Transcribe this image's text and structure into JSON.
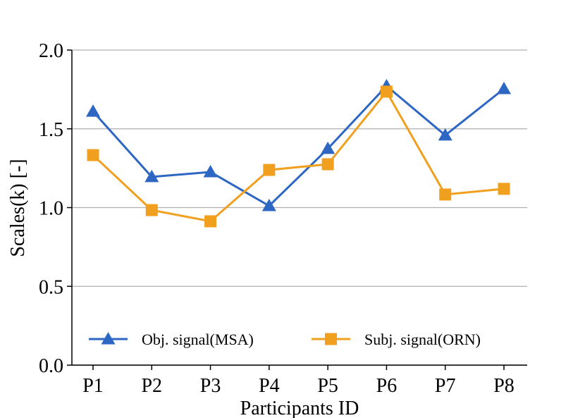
{
  "chart_data": {
    "type": "line",
    "x_label": "Participants ID",
    "y_label": "Scales(k) [-]",
    "categories": [
      "P1",
      "P2",
      "P3",
      "P4",
      "P5",
      "P6",
      "P7",
      "P8"
    ],
    "series": [
      {
        "name": "Obj. signal(MSA)",
        "color": "#2e66c4",
        "marker": "triangle",
        "values": [
          1.61,
          1.195,
          1.226,
          1.011,
          1.374,
          1.772,
          1.459,
          1.754
        ]
      },
      {
        "name": "Subj. signal(ORN)",
        "color": "#f0a01e",
        "marker": "square",
        "values": [
          1.333,
          0.984,
          0.913,
          1.239,
          1.275,
          1.736,
          1.083,
          1.119
        ]
      }
    ],
    "ylim": [
      0,
      2.0
    ],
    "yticks": [
      {
        "value": 0,
        "label": "0.0"
      },
      0.5,
      {
        "value": 1.0,
        "label": "1.0"
      },
      1.5,
      {
        "value": 2.0,
        "label": "2.0"
      }
    ],
    "grid": true,
    "legend": "lower center"
  }
}
